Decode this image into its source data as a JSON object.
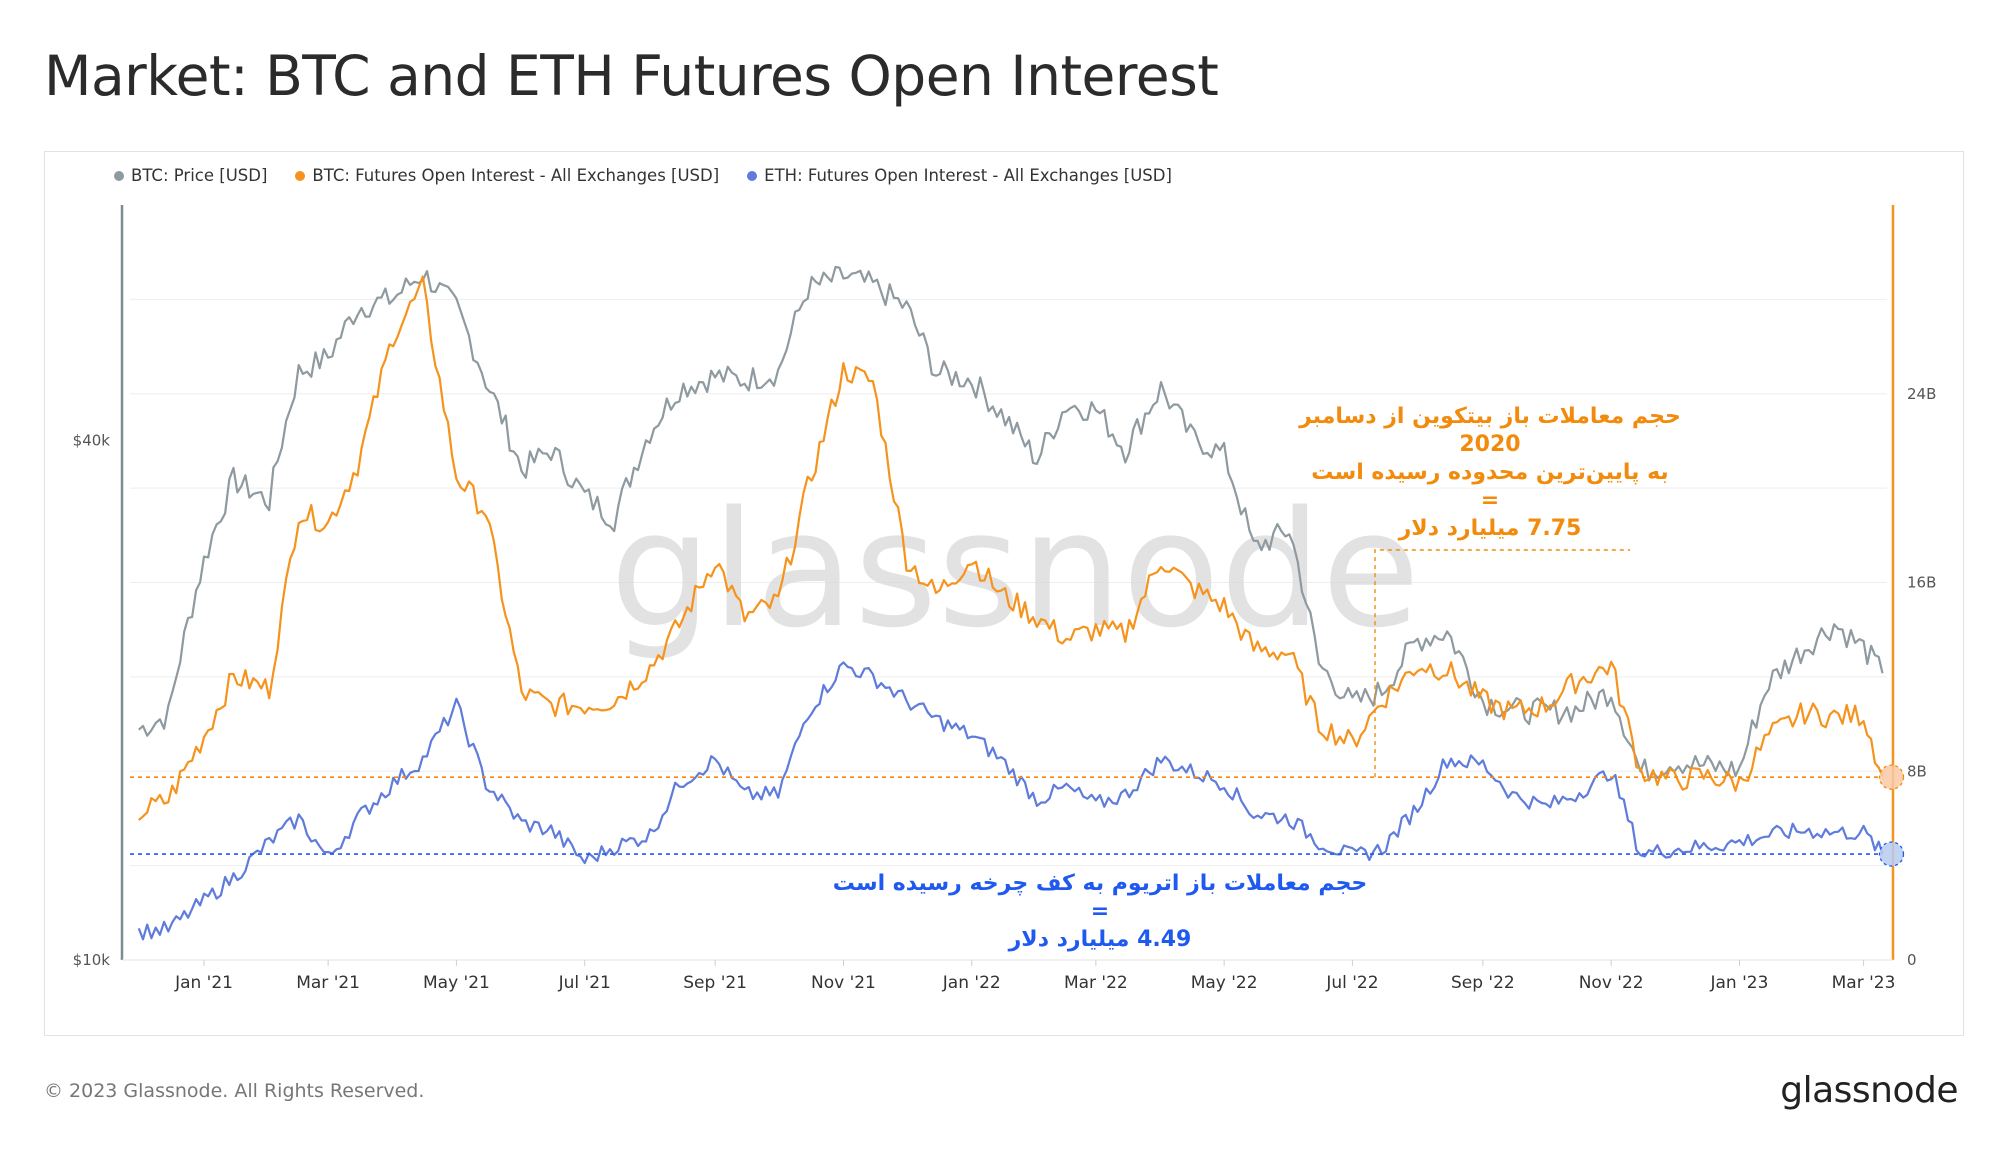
{
  "title": "Market: BTC and ETH Futures Open Interest",
  "watermark": "glassnode",
  "footer": {
    "copyright": "© 2023 Glassnode. All Rights Reserved.",
    "logo": "glassnode"
  },
  "legend": [
    {
      "label": "BTC: Price [USD]",
      "color": "#8e9a9f"
    },
    {
      "label": "BTC: Futures Open Interest - All Exchanges [USD]",
      "color": "#f5931d"
    },
    {
      "label": "ETH: Futures Open Interest - All Exchanges [USD]",
      "color": "#5f7bdc"
    }
  ],
  "annotations": {
    "btc_lines": [
      "حجم معاملات باز بیتکوین از دسامبر",
      "2020",
      "به پایین‌ترین محدوده رسیده است",
      "=",
      "7.75 میلیارد دلار"
    ],
    "eth_lines": [
      "حجم معاملات باز اتریوم به کف چرخه رسیده است",
      "=",
      "4.49 میلیارد دلار"
    ],
    "btc_color": "#f28b0c",
    "eth_color": "#1f59ef"
  },
  "chart_data": {
    "type": "line",
    "x_ticks": [
      "Jan '21",
      "Mar '21",
      "May '21",
      "Jul '21",
      "Sep '21",
      "Nov '21",
      "Jan '22",
      "Mar '22",
      "May '22",
      "Jul '22",
      "Sep '22",
      "Nov '22",
      "Jan '23",
      "Mar '23"
    ],
    "y_left": {
      "scale": "log",
      "ticks": [
        "$10k",
        "$40k"
      ],
      "range": [
        10000,
        75000
      ]
    },
    "y_right": {
      "scale": "linear",
      "ticks": [
        "0",
        "8B",
        "16B",
        "24B"
      ],
      "range": [
        0,
        32
      ]
    },
    "grid": true,
    "legend_position": "top-left",
    "dates": [
      "2020-12-01",
      "2020-12-15",
      "2021-01-01",
      "2021-01-15",
      "2021-02-01",
      "2021-02-15",
      "2021-03-01",
      "2021-03-15",
      "2021-04-01",
      "2021-04-15",
      "2021-05-01",
      "2021-05-15",
      "2021-06-01",
      "2021-06-15",
      "2021-07-01",
      "2021-07-15",
      "2021-08-01",
      "2021-08-15",
      "2021-09-01",
      "2021-09-15",
      "2021-10-01",
      "2021-10-15",
      "2021-11-01",
      "2021-11-15",
      "2021-12-01",
      "2021-12-15",
      "2022-01-01",
      "2022-01-15",
      "2022-02-01",
      "2022-02-15",
      "2022-03-01",
      "2022-03-15",
      "2022-04-01",
      "2022-04-15",
      "2022-05-01",
      "2022-05-15",
      "2022-06-01",
      "2022-06-15",
      "2022-07-01",
      "2022-07-15",
      "2022-08-01",
      "2022-08-15",
      "2022-09-01",
      "2022-09-15",
      "2022-10-01",
      "2022-10-15",
      "2022-11-01",
      "2022-11-15",
      "2022-12-01",
      "2022-12-15",
      "2023-01-01",
      "2023-01-15",
      "2023-02-01",
      "2023-02-15",
      "2023-03-01",
      "2023-03-10"
    ],
    "series": [
      {
        "name": "BTC: Price [USD]",
        "axis": "left",
        "color": "#8e9a9f",
        "values": [
          18500,
          19200,
          29000,
          36000,
          34000,
          48000,
          50000,
          57000,
          58500,
          62500,
          57000,
          47000,
          37000,
          39000,
          34500,
          32500,
          41000,
          46000,
          47500,
          47000,
          48000,
          60000,
          62000,
          60500,
          57000,
          48000,
          47000,
          43000,
          38000,
          44000,
          43500,
          39000,
          46000,
          40500,
          38500,
          30000,
          31500,
          22000,
          19800,
          20500,
          23500,
          24000,
          20000,
          19500,
          19400,
          19500,
          20500,
          16500,
          17000,
          16800,
          16600,
          21000,
          23000,
          24500,
          23000,
          21500
        ]
      },
      {
        "name": "BTC: Futures Open Interest - All Exchanges [USD]",
        "axis": "right",
        "color": "#f5931d",
        "values": [
          6.2,
          6.8,
          9.5,
          12.0,
          11.5,
          19.0,
          18.5,
          21.0,
          26.5,
          28.5,
          20.5,
          19.0,
          11.3,
          10.8,
          10.8,
          11.0,
          12.4,
          14.2,
          17.0,
          14.5,
          15.2,
          20.0,
          25.0,
          24.5,
          17.0,
          15.5,
          17.0,
          15.5,
          14.5,
          13.6,
          14.0,
          13.8,
          17.0,
          15.8,
          15.0,
          13.2,
          13.0,
          10.0,
          9.2,
          11.0,
          12.5,
          12.3,
          11.0,
          10.5,
          10.8,
          11.8,
          12.5,
          8.0,
          7.6,
          7.8,
          7.5,
          9.5,
          10.5,
          10.3,
          10.4,
          7.8
        ]
      },
      {
        "name": "ETH: Futures Open Interest - All Exchanges [USD]",
        "axis": "right",
        "color": "#5f7bdc",
        "values": [
          1.2,
          1.3,
          2.5,
          3.5,
          5.0,
          6.0,
          4.3,
          6.0,
          7.5,
          8.5,
          10.8,
          7.5,
          5.8,
          5.5,
          4.2,
          4.8,
          5.3,
          7.5,
          8.5,
          7.0,
          7.0,
          10.5,
          12.5,
          12.0,
          11.0,
          10.2,
          9.5,
          8.5,
          6.8,
          7.3,
          6.6,
          7.0,
          8.5,
          8.0,
          7.5,
          6.2,
          6.0,
          5.0,
          4.4,
          4.7,
          6.5,
          8.5,
          8.3,
          7.0,
          6.5,
          7.0,
          8.0,
          4.5,
          4.7,
          4.8,
          5.0,
          5.3,
          5.5,
          5.4,
          5.4,
          4.5
        ]
      }
    ],
    "reference_lines": [
      {
        "axis": "right",
        "value": 7.75,
        "color": "#f28b0c",
        "style": "dashed"
      },
      {
        "axis": "right",
        "value": 4.49,
        "color": "#1f59ef",
        "style": "dashed"
      }
    ]
  }
}
